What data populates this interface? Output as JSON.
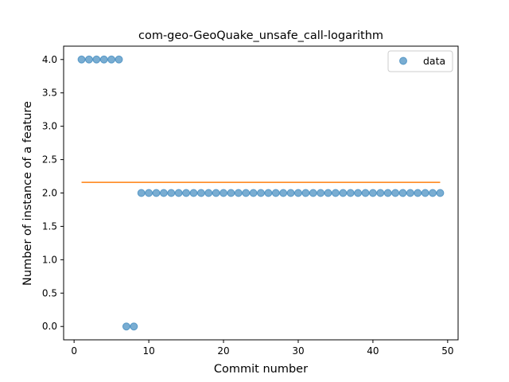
{
  "chart_data": {
    "type": "scatter",
    "title": "com-geo-GeoQuake_unsafe_call-logarithm",
    "xlabel": "Commit number",
    "ylabel": "Number of instance of a feature",
    "xlim": [
      -1.4,
      51.4
    ],
    "ylim": [
      -0.2,
      4.2
    ],
    "xticks": [
      0,
      10,
      20,
      30,
      40,
      50
    ],
    "yticks": [
      0.0,
      0.5,
      1.0,
      1.5,
      2.0,
      2.5,
      3.0,
      3.5,
      4.0
    ],
    "xtick_labels": [
      "0",
      "10",
      "20",
      "30",
      "40",
      "50"
    ],
    "ytick_labels": [
      "0.0",
      "0.5",
      "1.0",
      "1.5",
      "2.0",
      "2.5",
      "3.0",
      "3.5",
      "4.0"
    ],
    "legend_position": "top-right",
    "grid": false,
    "series": [
      {
        "name": "data",
        "kind": "scatter",
        "color": "#1f77b4",
        "x": [
          1,
          2,
          3,
          4,
          5,
          6,
          7,
          8,
          9,
          10,
          11,
          12,
          13,
          14,
          15,
          16,
          17,
          18,
          19,
          20,
          21,
          22,
          23,
          24,
          25,
          26,
          27,
          28,
          29,
          30,
          31,
          32,
          33,
          34,
          35,
          36,
          37,
          38,
          39,
          40,
          41,
          42,
          43,
          44,
          45,
          46,
          47,
          48,
          49
        ],
        "y": [
          4,
          4,
          4,
          4,
          4,
          4,
          0,
          0,
          2,
          2,
          2,
          2,
          2,
          2,
          2,
          2,
          2,
          2,
          2,
          2,
          2,
          2,
          2,
          2,
          2,
          2,
          2,
          2,
          2,
          2,
          2,
          2,
          2,
          2,
          2,
          2,
          2,
          2,
          2,
          2,
          2,
          2,
          2,
          2,
          2,
          2,
          2,
          2,
          2
        ]
      },
      {
        "kind": "line",
        "color": "#ff7f0e",
        "x": [
          1,
          49
        ],
        "y": [
          2.16,
          2.16
        ]
      }
    ]
  }
}
